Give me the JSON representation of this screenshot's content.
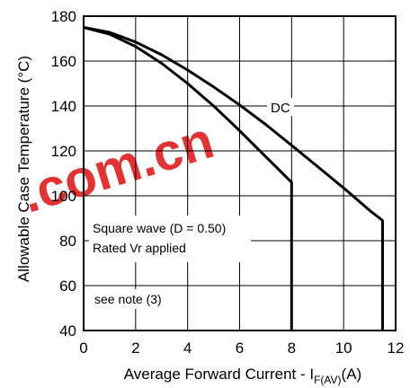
{
  "chart_data": {
    "type": "line",
    "xlabel_main": "Average Forward Current - I",
    "xlabel_sub": "F(AV)",
    "xlabel_unit": "(A)",
    "ylabel": "Allowable Case Temperature (°C)",
    "xlim": [
      0,
      12
    ],
    "ylim": [
      40,
      180
    ],
    "xticks": [
      0,
      2,
      4,
      6,
      8,
      10,
      12
    ],
    "yticks": [
      40,
      60,
      80,
      100,
      120,
      140,
      160,
      180
    ],
    "grid": true,
    "series": [
      {
        "name": "DC",
        "color": "#000000",
        "x": [
          0,
          1,
          2,
          3,
          4,
          5,
          6,
          7,
          8,
          9,
          10,
          11,
          11.5,
          11.5
        ],
        "y": [
          175,
          172.8,
          168.5,
          162.8,
          156,
          148.5,
          140.5,
          131.8,
          122.5,
          113,
          103.5,
          93.5,
          89,
          40
        ]
      },
      {
        "name": "",
        "color": "#000000",
        "x": [
          0,
          1,
          2,
          3,
          4,
          5,
          6,
          7,
          8,
          8
        ],
        "y": [
          175,
          172,
          166.5,
          159,
          150,
          140,
          129,
          117.5,
          106,
          40
        ]
      }
    ],
    "annotations": {
      "series_label": "DC",
      "note1": "Square wave (D = 0.50)",
      "note2": "Rated Vr  applied",
      "note3": "see note (3)"
    }
  },
  "watermark": {
    "text1": ".com.cn",
    "color": "#e21b1b"
  }
}
